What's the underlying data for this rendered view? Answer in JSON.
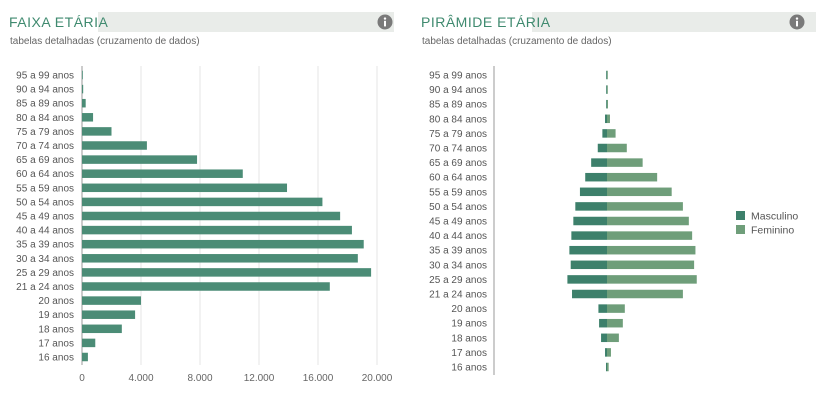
{
  "colors": {
    "male": "#3d806b",
    "female": "#6f9e7a",
    "bar": "#4b8c76",
    "title": "#3f8a6f",
    "grid": "#e4e4e4"
  },
  "icons": {
    "info": "info-icon"
  },
  "chart_data": [
    {
      "type": "bar",
      "orientation": "horizontal",
      "title": "FAIXA ETÁRIA",
      "subtitle": "tabelas detalhadas (cruzamento de dados)",
      "categories": [
        "95 a 99 anos",
        "90 a 94 anos",
        "85 a 89 anos",
        "80 a 84 anos",
        "75 a 79 anos",
        "70 a 74 anos",
        "65 a 69 anos",
        "60 a 64 anos",
        "55 a 59 anos",
        "50 a 54 anos",
        "45 a 49 anos",
        "40 a 44 anos",
        "35 a 39 anos",
        "30 a 34 anos",
        "25 a 29 anos",
        "21 a 24 anos",
        "20 anos",
        "19 anos",
        "18 anos",
        "17 anos",
        "16 anos"
      ],
      "values": [
        30,
        80,
        250,
        750,
        2000,
        4400,
        7800,
        10900,
        13900,
        16300,
        17500,
        18300,
        19100,
        18700,
        19600,
        16800,
        4000,
        3600,
        2700,
        900,
        400
      ],
      "xlim": [
        0,
        20000
      ],
      "xticks": [
        "0",
        "4.000",
        "8.000",
        "12.000",
        "16.000",
        "20.000"
      ],
      "grid": true
    },
    {
      "type": "bar",
      "orientation": "horizontal",
      "stacked": "diverging",
      "title": "PIRÂMIDE ETÁRIA",
      "subtitle": "tabelas detalhadas (cruzamento de dados)",
      "categories": [
        "95 a 99 anos",
        "90 a 94 anos",
        "85 a 89 anos",
        "80 a 84 anos",
        "75 a 79 anos",
        "70 a 74 anos",
        "65 a 69 anos",
        "60 a 64 anos",
        "55 a 59 anos",
        "50 a 54 anos",
        "45 a 49 anos",
        "40 a 44 anos",
        "35 a 39 anos",
        "30 a 34 anos",
        "25 a 29 anos",
        "21 a 24 anos",
        "20 anos",
        "19 anos",
        "18 anos",
        "17 anos",
        "16 anos"
      ],
      "legend_position": "right",
      "series": [
        {
          "name": "Masculino",
          "values": [
            10,
            30,
            100,
            300,
            700,
            1400,
            2400,
            3300,
            4100,
            4800,
            5100,
            5400,
            5700,
            5500,
            6000,
            5300,
            1300,
            1200,
            900,
            300,
            150
          ]
        },
        {
          "name": "Feminino",
          "values": [
            20,
            50,
            150,
            450,
            1300,
            3000,
            5400,
            7600,
            9800,
            11500,
            12400,
            12900,
            13400,
            13200,
            13600,
            11500,
            2700,
            2400,
            1800,
            600,
            250
          ]
        }
      ]
    }
  ]
}
